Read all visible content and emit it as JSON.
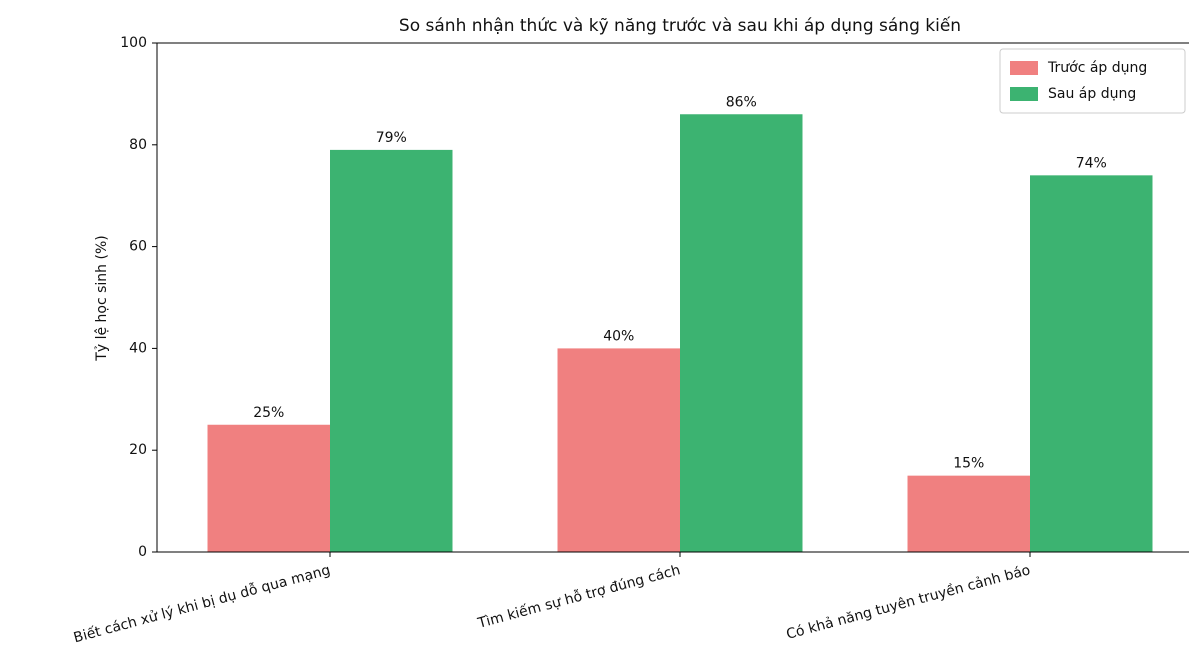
{
  "chart_data": {
    "type": "bar",
    "title": "So sánh nhận thức và kỹ năng trước và sau khi áp dụng sáng kiến",
    "y_label": "Tỷ lệ học sinh (%)",
    "categories": [
      "Biết cách xử lý khi bị dụ dỗ qua mạng",
      "Tìm kiếm sự hỗ trợ đúng cách",
      "Có khả năng tuyên truyền cảnh báo"
    ],
    "series": [
      {
        "name": "Trước áp dụng",
        "color": "#f08080",
        "values": [
          25,
          40,
          15
        ],
        "value_labels": [
          "25%",
          "40%",
          "15%"
        ]
      },
      {
        "name": "Sau áp dụng",
        "color": "#3cb371",
        "values": [
          79,
          86,
          74
        ],
        "value_labels": [
          "79%",
          "86%",
          "74%"
        ]
      }
    ],
    "ylim": [
      0,
      100
    ],
    "yticks": [
      0,
      20,
      40,
      60,
      80,
      100
    ],
    "grid": false,
    "legend": "upper right"
  }
}
